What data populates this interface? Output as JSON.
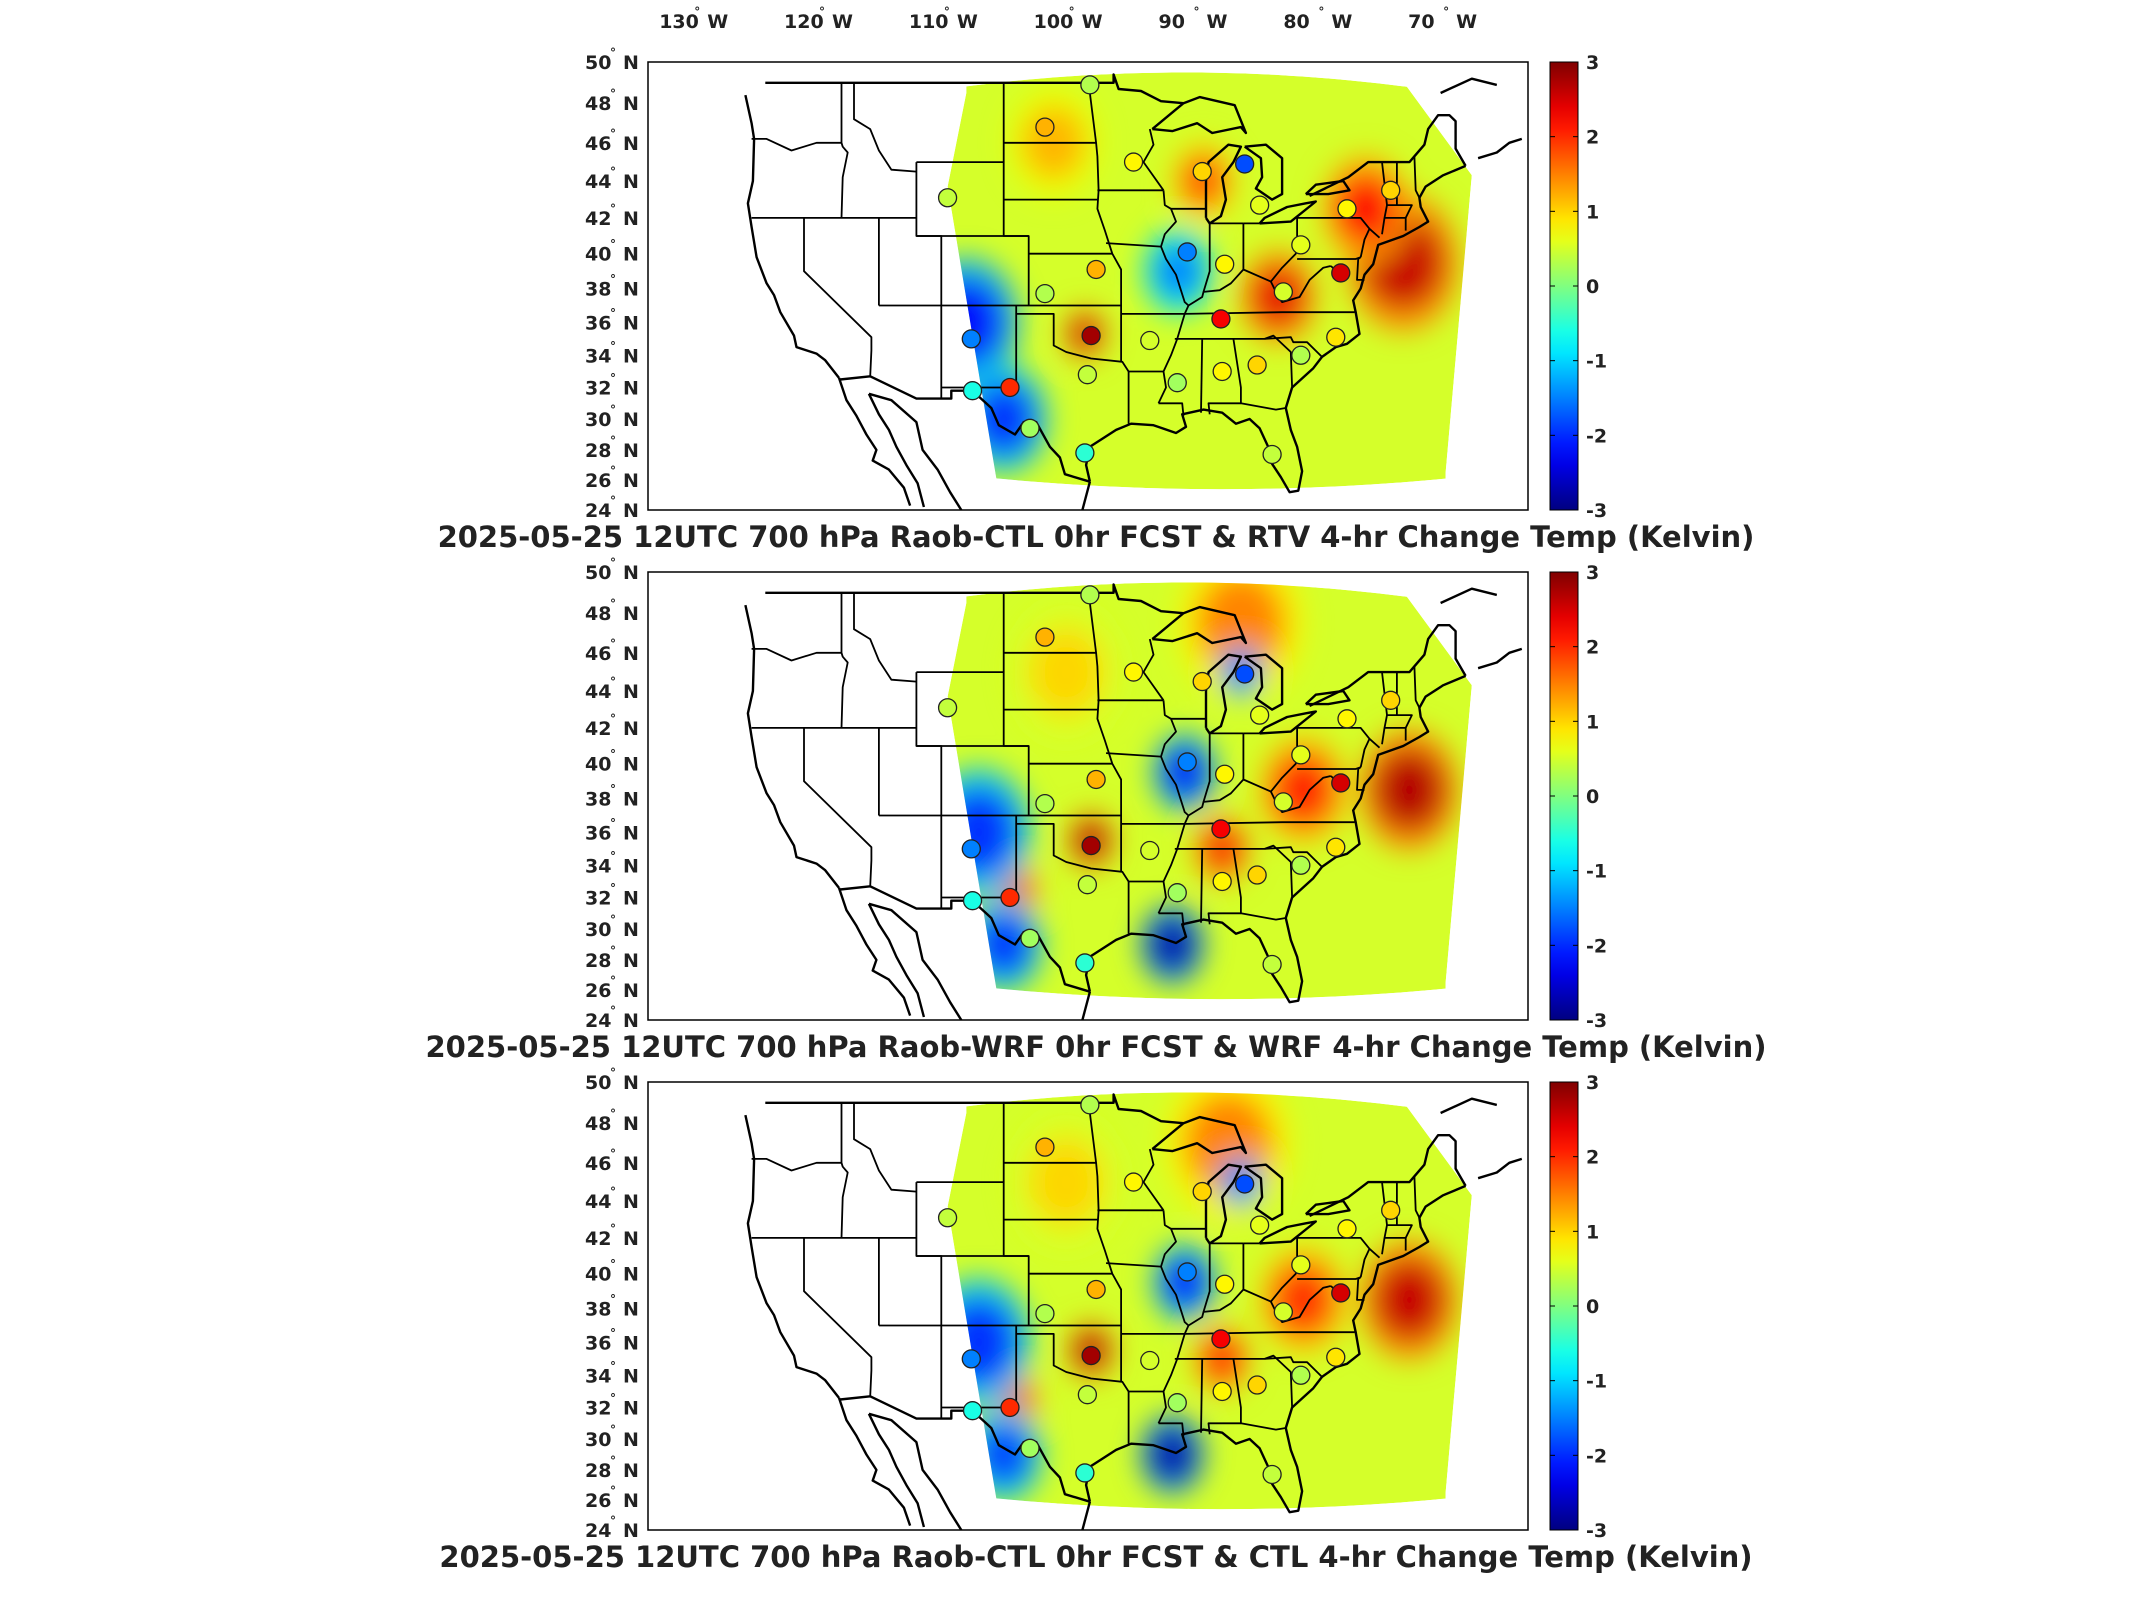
{
  "longitude_labels": [
    "130",
    "120",
    "110",
    "100",
    "90",
    "80",
    "70"
  ],
  "longitude_hemisphere": "W",
  "latitude_labels": [
    "50",
    "48",
    "46",
    "44",
    "42",
    "40",
    "38",
    "36",
    "34",
    "32",
    "30",
    "28",
    "26",
    "24"
  ],
  "latitude_hemisphere": "N",
  "colorbar": {
    "min": -3,
    "max": 3,
    "tick_labels": [
      "3",
      "2",
      "1",
      "0",
      "-1",
      "-2",
      "-3"
    ],
    "colormap": "jet",
    "colors": [
      "#00008f",
      "#0000ff",
      "#00ffff",
      "#ffff00",
      "#ff0000",
      "#800000"
    ]
  },
  "panels": [
    {
      "title": "2025-05-25 12UTC 700 hPa Raob-CTL 0hr FCST & RTV 4-hr Change Temp (Kelvin)",
      "field": "RTV 4-hr Change"
    },
    {
      "title": "2025-05-25 12UTC 700 hPa Raob-WRF 0hr FCST & WRF 4-hr Change Temp (Kelvin)",
      "field": "WRF 4-hr Change"
    },
    {
      "title": "2025-05-25 12UTC 700 hPa Raob-CTL 0hr FCST & CTL 4-hr Change Temp (Kelvin)",
      "field": "CTL 4-hr Change"
    }
  ],
  "raob_stations": [
    {
      "lon": -100.7,
      "lat": 46.8,
      "value": 1.2
    },
    {
      "lon": -97.1,
      "lat": 48.9,
      "value": 0.3
    },
    {
      "lon": -93.6,
      "lat": 45.0,
      "value": 0.8
    },
    {
      "lon": -88.1,
      "lat": 44.5,
      "value": 1.0
    },
    {
      "lon": -84.7,
      "lat": 44.9,
      "value": -1.8
    },
    {
      "lon": -83.5,
      "lat": 42.7,
      "value": 0.6
    },
    {
      "lon": -76.5,
      "lat": 42.5,
      "value": 0.8
    },
    {
      "lon": -73.0,
      "lat": 43.5,
      "value": 1.0
    },
    {
      "lon": -108.5,
      "lat": 43.1,
      "value": 0.4
    },
    {
      "lon": -89.3,
      "lat": 40.1,
      "value": -1.5
    },
    {
      "lon": -86.3,
      "lat": 39.4,
      "value": 0.8
    },
    {
      "lon": -80.2,
      "lat": 40.5,
      "value": 0.6
    },
    {
      "lon": -77.0,
      "lat": 38.9,
      "value": 2.5
    },
    {
      "lon": -100.7,
      "lat": 37.7,
      "value": 0.3
    },
    {
      "lon": -96.6,
      "lat": 39.1,
      "value": 1.2
    },
    {
      "lon": -97.0,
      "lat": 35.2,
      "value": 2.8
    },
    {
      "lon": -106.6,
      "lat": 35.0,
      "value": -1.5
    },
    {
      "lon": -103.5,
      "lat": 32.0,
      "value": 2.0
    },
    {
      "lon": -97.3,
      "lat": 32.8,
      "value": 0.4
    },
    {
      "lon": -92.3,
      "lat": 34.9,
      "value": 0.5
    },
    {
      "lon": -86.6,
      "lat": 36.2,
      "value": 2.3
    },
    {
      "lon": -83.7,
      "lat": 33.4,
      "value": 1.0
    },
    {
      "lon": -86.5,
      "lat": 33.0,
      "value": 0.8
    },
    {
      "lon": -90.1,
      "lat": 32.3,
      "value": 0.2
    },
    {
      "lon": -80.2,
      "lat": 34.0,
      "value": 0.3
    },
    {
      "lon": -77.4,
      "lat": 35.1,
      "value": 0.9
    },
    {
      "lon": -81.6,
      "lat": 37.8,
      "value": 0.5
    },
    {
      "lon": -106.5,
      "lat": 31.8,
      "value": -0.6
    },
    {
      "lon": -97.5,
      "lat": 27.8,
      "value": -0.5
    },
    {
      "lon": -101.9,
      "lat": 29.4,
      "value": 0.2
    },
    {
      "lon": -82.5,
      "lat": 27.7,
      "value": 0.4
    }
  ],
  "warm_anomalies": [
    {
      "panel": 0,
      "lon": -72.0,
      "lat": 39.5,
      "value": 2.6,
      "spread": 3.2
    },
    {
      "panel": 0,
      "lon": -75.0,
      "lat": 42.5,
      "value": 2.2,
      "spread": 2.5
    },
    {
      "panel": 0,
      "lon": -82.0,
      "lat": 37.5,
      "value": 2.4,
      "spread": 2.2
    },
    {
      "panel": 0,
      "lon": -88.0,
      "lat": 44.0,
      "value": 1.8,
      "spread": 1.8
    },
    {
      "panel": 0,
      "lon": -100.0,
      "lat": 46.0,
      "value": 1.2,
      "spread": 2.5
    },
    {
      "panel": 0,
      "lon": -97.5,
      "lat": 35.3,
      "value": 2.6,
      "spread": 1.2
    },
    {
      "panel": 1,
      "lon": -71.5,
      "lat": 38.5,
      "value": 2.7,
      "spread": 2.8
    },
    {
      "panel": 1,
      "lon": -80.0,
      "lat": 38.5,
      "value": 2.1,
      "spread": 2.5
    },
    {
      "panel": 1,
      "lon": -86.5,
      "lat": 35.0,
      "value": 2.3,
      "spread": 1.6
    },
    {
      "panel": 1,
      "lon": -97.0,
      "lat": 35.5,
      "value": 2.8,
      "spread": 1.3
    },
    {
      "panel": 1,
      "lon": -103.0,
      "lat": 32.5,
      "value": 2.0,
      "spread": 1.3
    },
    {
      "panel": 1,
      "lon": -85.0,
      "lat": 47.5,
      "value": 1.5,
      "spread": 3.5
    },
    {
      "panel": 1,
      "lon": -99.0,
      "lat": 45.0,
      "value": 1.0,
      "spread": 3.0
    },
    {
      "panel": 2,
      "lon": -71.5,
      "lat": 38.5,
      "value": 2.6,
      "spread": 2.8
    },
    {
      "panel": 2,
      "lon": -80.0,
      "lat": 38.5,
      "value": 2.0,
      "spread": 2.5
    },
    {
      "panel": 2,
      "lon": -86.5,
      "lat": 35.0,
      "value": 2.2,
      "spread": 1.6
    },
    {
      "panel": 2,
      "lon": -97.0,
      "lat": 35.5,
      "value": 2.8,
      "spread": 1.3
    },
    {
      "panel": 2,
      "lon": -103.0,
      "lat": 32.5,
      "value": 2.0,
      "spread": 1.3
    },
    {
      "panel": 2,
      "lon": -86.0,
      "lat": 47.0,
      "value": 1.5,
      "spread": 3.5
    },
    {
      "panel": 2,
      "lon": -99.0,
      "lat": 45.0,
      "value": 1.0,
      "spread": 3.0
    }
  ],
  "cold_anomalies": [
    {
      "panel": 0,
      "lon": -107.0,
      "lat": 36.0,
      "value": -2.2,
      "spread": 3.0
    },
    {
      "panel": 0,
      "lon": -104.0,
      "lat": 30.0,
      "value": -2.0,
      "spread": 2.5
    },
    {
      "panel": 0,
      "lon": -90.0,
      "lat": 39.0,
      "value": -1.5,
      "spread": 2.0
    },
    {
      "panel": 1,
      "lon": -90.5,
      "lat": 29.0,
      "value": -2.8,
      "spread": 1.8
    },
    {
      "panel": 1,
      "lon": -89.5,
      "lat": 39.5,
      "value": -2.3,
      "spread": 1.8
    },
    {
      "panel": 1,
      "lon": -106.0,
      "lat": 36.0,
      "value": -2.0,
      "spread": 3.0
    },
    {
      "panel": 1,
      "lon": -104.0,
      "lat": 29.0,
      "value": -2.0,
      "spread": 2.2
    },
    {
      "panel": 1,
      "lon": -85.0,
      "lat": 45.0,
      "value": -1.8,
      "spread": 1.2
    },
    {
      "panel": 2,
      "lon": -90.5,
      "lat": 29.0,
      "value": -2.8,
      "spread": 1.8
    },
    {
      "panel": 2,
      "lon": -89.5,
      "lat": 39.5,
      "value": -2.2,
      "spread": 1.8
    },
    {
      "panel": 2,
      "lon": -106.0,
      "lat": 36.0,
      "value": -2.0,
      "spread": 3.0
    },
    {
      "panel": 2,
      "lon": -104.0,
      "lat": 29.0,
      "value": -1.9,
      "spread": 2.2
    },
    {
      "panel": 2,
      "lon": -85.0,
      "lat": 45.0,
      "value": -1.8,
      "spread": 1.2
    }
  ]
}
